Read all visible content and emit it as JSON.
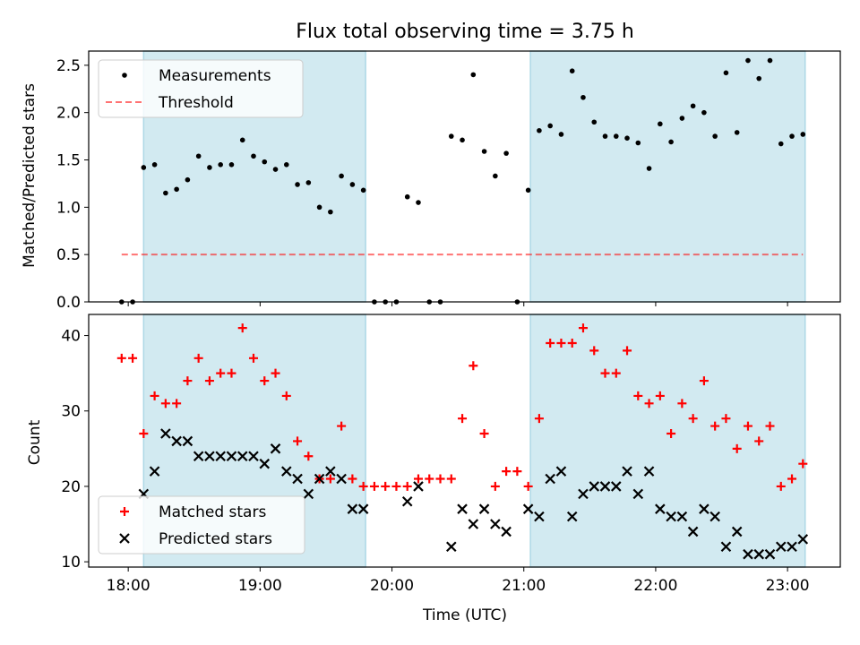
{
  "title": "Flux total observing time = 3.75 h",
  "xlabel": "Time (UTC)",
  "colors": {
    "span": "#add8e6",
    "measurement": "#000000",
    "threshold": "#ff0000",
    "matched": "#ff0000",
    "predicted": "#000000"
  },
  "chart_data": [
    {
      "type": "scatter",
      "ylabel": "Matched/Predicted stars",
      "xlim": [
        "17:42",
        "23:24"
      ],
      "ylim": [
        0,
        2.65
      ],
      "x_ticks": [
        "18:00",
        "19:00",
        "20:00",
        "21:00",
        "22:00",
        "23:00"
      ],
      "y_ticks": [
        "0.0",
        "0.5",
        "1.0",
        "1.5",
        "2.0",
        "2.5"
      ],
      "shaded_spans": [
        [
          "18:07",
          "19:48"
        ],
        [
          "21:03",
          "23:08"
        ]
      ],
      "threshold": {
        "name": "Threshold",
        "value": 0.5,
        "x": [
          "17:57",
          "23:07"
        ],
        "style": "dashed"
      },
      "legend": [
        "Measurements",
        "Threshold"
      ],
      "legend_position": "upper-left",
      "series": [
        {
          "name": "Measurements",
          "marker": "dot",
          "points": [
            [
              "17:57",
              0.0
            ],
            [
              "18:02",
              0.0
            ],
            [
              "18:07",
              1.42
            ],
            [
              "18:12",
              1.45
            ],
            [
              "18:17",
              1.15
            ],
            [
              "18:22",
              1.19
            ],
            [
              "18:27",
              1.29
            ],
            [
              "18:32",
              1.54
            ],
            [
              "18:37",
              1.42
            ],
            [
              "18:42",
              1.45
            ],
            [
              "18:47",
              1.45
            ],
            [
              "18:52",
              1.71
            ],
            [
              "18:57",
              1.54
            ],
            [
              "19:02",
              1.48
            ],
            [
              "19:07",
              1.4
            ],
            [
              "19:12",
              1.45
            ],
            [
              "19:17",
              1.24
            ],
            [
              "19:22",
              1.26
            ],
            [
              "19:27",
              1.0
            ],
            [
              "19:32",
              0.95
            ],
            [
              "19:37",
              1.33
            ],
            [
              "19:42",
              1.24
            ],
            [
              "19:47",
              1.18
            ],
            [
              "19:52",
              0.0
            ],
            [
              "19:57",
              0.0
            ],
            [
              "20:02",
              0.0
            ],
            [
              "20:07",
              1.11
            ],
            [
              "20:12",
              1.05
            ],
            [
              "20:17",
              0.0
            ],
            [
              "20:22",
              0.0
            ],
            [
              "20:27",
              1.75
            ],
            [
              "20:32",
              1.71
            ],
            [
              "20:37",
              2.4
            ],
            [
              "20:42",
              1.59
            ],
            [
              "20:47",
              1.33
            ],
            [
              "20:52",
              1.57
            ],
            [
              "20:57",
              0.0
            ],
            [
              "21:02",
              1.18
            ],
            [
              "21:07",
              1.81
            ],
            [
              "21:12",
              1.86
            ],
            [
              "21:17",
              1.77
            ],
            [
              "21:22",
              2.44
            ],
            [
              "21:27",
              2.16
            ],
            [
              "21:32",
              1.9
            ],
            [
              "21:37",
              1.75
            ],
            [
              "21:42",
              1.75
            ],
            [
              "21:47",
              1.73
            ],
            [
              "21:52",
              1.68
            ],
            [
              "21:57",
              1.41
            ],
            [
              "22:02",
              1.88
            ],
            [
              "22:07",
              1.69
            ],
            [
              "22:12",
              1.94
            ],
            [
              "22:17",
              2.07
            ],
            [
              "22:22",
              2.0
            ],
            [
              "22:27",
              1.75
            ],
            [
              "22:32",
              2.42
            ],
            [
              "22:37",
              1.79
            ],
            [
              "22:42",
              2.55
            ],
            [
              "22:47",
              2.36
            ],
            [
              "22:52",
              2.55
            ],
            [
              "22:57",
              1.67
            ],
            [
              "23:02",
              1.75
            ],
            [
              "23:07",
              1.77
            ]
          ]
        }
      ]
    },
    {
      "type": "scatter",
      "ylabel": "Count",
      "xlabel": "Time (UTC)",
      "xlim": [
        "17:42",
        "23:24"
      ],
      "ylim": [
        9.3,
        42.8
      ],
      "x_ticks": [
        "18:00",
        "19:00",
        "20:00",
        "21:00",
        "22:00",
        "23:00"
      ],
      "y_ticks": [
        "10",
        "20",
        "30",
        "40"
      ],
      "shaded_spans": [
        [
          "18:07",
          "19:48"
        ],
        [
          "21:03",
          "23:08"
        ]
      ],
      "legend": [
        "Matched stars",
        "Predicted stars"
      ],
      "legend_position": "lower-left",
      "series": [
        {
          "name": "Matched stars",
          "marker": "plus",
          "points": [
            [
              "17:57",
              37
            ],
            [
              "18:02",
              37
            ],
            [
              "18:07",
              27
            ],
            [
              "18:12",
              32
            ],
            [
              "18:17",
              31
            ],
            [
              "18:22",
              31
            ],
            [
              "18:27",
              34
            ],
            [
              "18:32",
              37
            ],
            [
              "18:37",
              34
            ],
            [
              "18:42",
              35
            ],
            [
              "18:47",
              35
            ],
            [
              "18:52",
              41
            ],
            [
              "18:57",
              37
            ],
            [
              "19:02",
              34
            ],
            [
              "19:07",
              35
            ],
            [
              "19:12",
              32
            ],
            [
              "19:17",
              26
            ],
            [
              "19:22",
              24
            ],
            [
              "19:27",
              21
            ],
            [
              "19:32",
              21
            ],
            [
              "19:37",
              28
            ],
            [
              "19:42",
              21
            ],
            [
              "19:47",
              20
            ],
            [
              "19:52",
              20
            ],
            [
              "19:57",
              20
            ],
            [
              "20:02",
              20
            ],
            [
              "20:07",
              20
            ],
            [
              "20:12",
              21
            ],
            [
              "20:17",
              21
            ],
            [
              "20:22",
              21
            ],
            [
              "20:27",
              21
            ],
            [
              "20:32",
              29
            ],
            [
              "20:37",
              36
            ],
            [
              "20:42",
              27
            ],
            [
              "20:47",
              20
            ],
            [
              "20:52",
              22
            ],
            [
              "20:57",
              22
            ],
            [
              "21:02",
              20
            ],
            [
              "21:07",
              29
            ],
            [
              "21:12",
              39
            ],
            [
              "21:17",
              39
            ],
            [
              "21:22",
              39
            ],
            [
              "21:27",
              41
            ],
            [
              "21:32",
              38
            ],
            [
              "21:37",
              35
            ],
            [
              "21:42",
              35
            ],
            [
              "21:47",
              38
            ],
            [
              "21:52",
              32
            ],
            [
              "21:57",
              31
            ],
            [
              "22:02",
              32
            ],
            [
              "22:07",
              27
            ],
            [
              "22:12",
              31
            ],
            [
              "22:17",
              29
            ],
            [
              "22:22",
              34
            ],
            [
              "22:27",
              28
            ],
            [
              "22:32",
              29
            ],
            [
              "22:37",
              25
            ],
            [
              "22:42",
              28
            ],
            [
              "22:47",
              26
            ],
            [
              "22:52",
              28
            ],
            [
              "22:57",
              20
            ],
            [
              "23:02",
              21
            ],
            [
              "23:07",
              23
            ]
          ]
        },
        {
          "name": "Predicted stars",
          "marker": "x",
          "points": [
            [
              "18:07",
              19
            ],
            [
              "18:12",
              22
            ],
            [
              "18:17",
              27
            ],
            [
              "18:22",
              26
            ],
            [
              "18:27",
              26
            ],
            [
              "18:32",
              24
            ],
            [
              "18:37",
              24
            ],
            [
              "18:42",
              24
            ],
            [
              "18:47",
              24
            ],
            [
              "18:52",
              24
            ],
            [
              "18:57",
              24
            ],
            [
              "19:02",
              23
            ],
            [
              "19:07",
              25
            ],
            [
              "19:12",
              22
            ],
            [
              "19:17",
              21
            ],
            [
              "19:22",
              19
            ],
            [
              "19:27",
              21
            ],
            [
              "19:32",
              22
            ],
            [
              "19:37",
              21
            ],
            [
              "19:42",
              17
            ],
            [
              "19:47",
              17
            ],
            [
              "20:07",
              18
            ],
            [
              "20:12",
              20
            ],
            [
              "20:27",
              12
            ],
            [
              "20:32",
              17
            ],
            [
              "20:37",
              15
            ],
            [
              "20:42",
              17
            ],
            [
              "20:47",
              15
            ],
            [
              "20:52",
              14
            ],
            [
              "21:02",
              17
            ],
            [
              "21:07",
              16
            ],
            [
              "21:12",
              21
            ],
            [
              "21:17",
              22
            ],
            [
              "21:22",
              16
            ],
            [
              "21:27",
              19
            ],
            [
              "21:32",
              20
            ],
            [
              "21:37",
              20
            ],
            [
              "21:42",
              20
            ],
            [
              "21:47",
              22
            ],
            [
              "21:52",
              19
            ],
            [
              "21:57",
              22
            ],
            [
              "22:02",
              17
            ],
            [
              "22:07",
              16
            ],
            [
              "22:12",
              16
            ],
            [
              "22:17",
              14
            ],
            [
              "22:22",
              17
            ],
            [
              "22:27",
              16
            ],
            [
              "22:32",
              12
            ],
            [
              "22:37",
              14
            ],
            [
              "22:42",
              11
            ],
            [
              "22:47",
              11
            ],
            [
              "22:52",
              11
            ],
            [
              "22:57",
              12
            ],
            [
              "23:02",
              12
            ],
            [
              "23:07",
              13
            ]
          ]
        }
      ]
    }
  ]
}
